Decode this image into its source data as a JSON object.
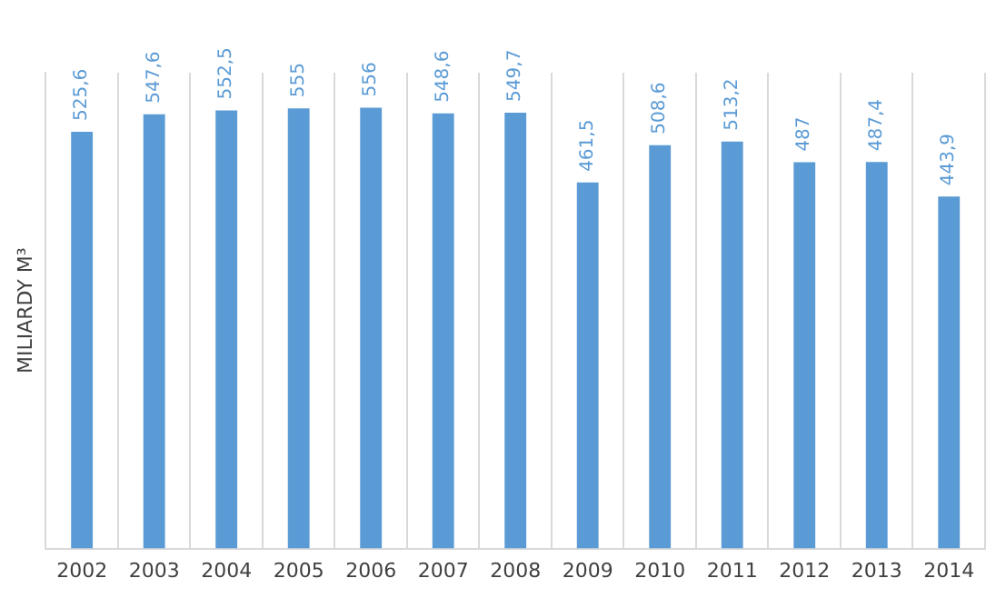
{
  "chart_data": {
    "type": "bar",
    "ylabel": "MILIARDY M³",
    "categories": [
      "2002",
      "2003",
      "2004",
      "2005",
      "2006",
      "2007",
      "2008",
      "2009",
      "2010",
      "2011",
      "2012",
      "2013",
      "2014"
    ],
    "values": [
      525.6,
      547.6,
      552.5,
      555,
      556,
      548.6,
      549.7,
      461.5,
      508.6,
      513.2,
      487,
      487.4,
      443.9
    ],
    "value_labels": [
      "525,6",
      "547,6",
      "552,5",
      "555",
      "556",
      "548,6",
      "549,7",
      "461,5",
      "508,6",
      "513,2",
      "487",
      "487,4",
      "443,9"
    ],
    "color": "#5b9bd5",
    "grid": "x",
    "legend": false
  }
}
